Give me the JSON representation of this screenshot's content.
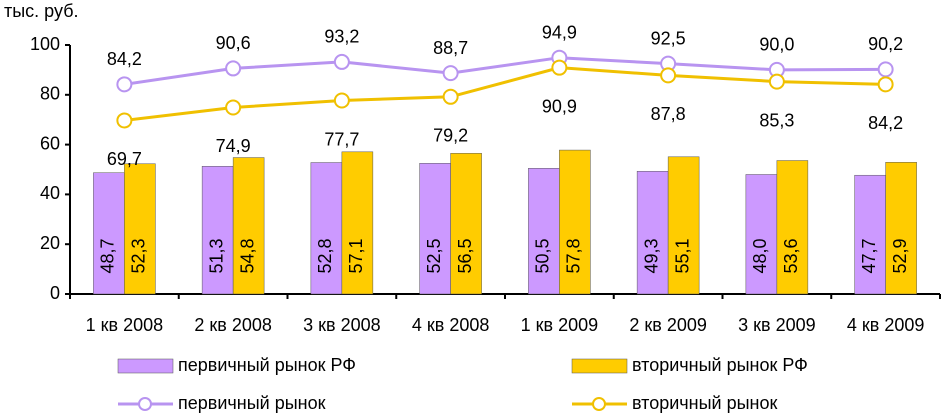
{
  "chart_data": {
    "type": "bar",
    "y_label": "тыс. руб.",
    "categories": [
      "1 кв 2008",
      "2 кв 2008",
      "3 кв 2008",
      "4 кв 2008",
      "1 кв 2009",
      "2 кв 2009",
      "3 кв 2009",
      "4 кв 2009"
    ],
    "ylim": [
      0,
      100
    ],
    "yticks": [
      0,
      20,
      40,
      60,
      80,
      100
    ],
    "series": [
      {
        "name": "первичный рынок РФ",
        "type": "bar",
        "color": "#cc99ff",
        "values": [
          48.7,
          51.3,
          52.8,
          52.5,
          50.5,
          49.3,
          48.0,
          47.7
        ],
        "value_labels": [
          "48,7",
          "51,3",
          "52,8",
          "52,5",
          "50,5",
          "49,3",
          "48,0",
          "47,7"
        ]
      },
      {
        "name": "вторичный рынок РФ",
        "type": "bar",
        "color": "#ffcc00",
        "values": [
          52.3,
          54.8,
          57.1,
          56.5,
          57.8,
          55.1,
          53.6,
          52.9
        ],
        "value_labels": [
          "52,3",
          "54,8",
          "57,1",
          "56,5",
          "57,8",
          "55,1",
          "53,6",
          "52,9"
        ]
      },
      {
        "name": "первичный рынок",
        "type": "line",
        "color": "#b894f0",
        "values": [
          84.2,
          90.6,
          93.2,
          88.7,
          94.9,
          92.5,
          90.0,
          90.2
        ],
        "value_labels": [
          "84,2",
          "90,6",
          "93,2",
          "88,7",
          "94,9",
          "92,5",
          "90,0",
          "90,2"
        ]
      },
      {
        "name": "вторичный рынок",
        "type": "line",
        "color": "#f0c000",
        "values": [
          69.7,
          74.9,
          77.7,
          79.2,
          90.9,
          87.8,
          85.3,
          84.2
        ],
        "value_labels": [
          "69,7",
          "74,9",
          "77,7",
          "79,2",
          "90,9",
          "87,8",
          "85,3",
          "84,2"
        ]
      }
    ]
  }
}
